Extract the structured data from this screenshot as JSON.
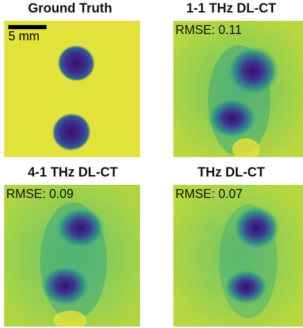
{
  "panels": [
    {
      "title": "Ground Truth",
      "rmse": null
    },
    {
      "title": "1-1 THz DL-CT",
      "rmse": "RMSE: 0.11"
    },
    {
      "title": "4-1 THz DL-CT",
      "rmse": "RMSE: 0.09"
    },
    {
      "title": "THz DL-CT",
      "rmse": "RMSE: 0.07"
    }
  ],
  "scalebar": {
    "label": "5 mm"
  },
  "colors": {
    "background": "#e3e23a",
    "mid": "#55c36d",
    "dark": "#3a0f6e",
    "edge": "#2b7f8f"
  }
}
